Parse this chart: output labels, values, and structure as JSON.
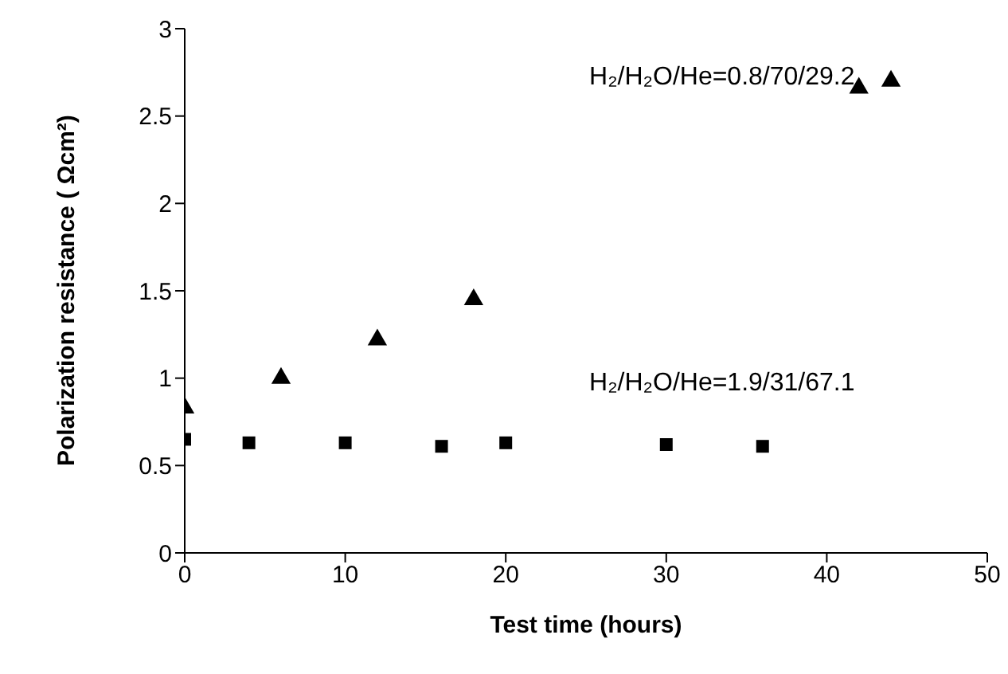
{
  "chart_data": {
    "type": "scatter",
    "xlabel": "Test time (hours)",
    "ylabel": "Polarization resistance ( Ωcm²)",
    "xlim": [
      0,
      50
    ],
    "xticks": [
      0,
      10,
      20,
      30,
      40,
      50
    ],
    "ylim": [
      0,
      3
    ],
    "yticks": [
      0,
      0.5,
      1,
      1.5,
      2,
      2.5,
      3
    ],
    "grid": false,
    "legend": false,
    "series": [
      {
        "name": "H₂/H₂O/He=0.8/70/29.2",
        "color": "#000000",
        "marker": "triangle",
        "x": [
          0,
          6,
          12,
          18,
          42,
          44
        ],
        "values": [
          0.83,
          1.0,
          1.22,
          1.45,
          2.66,
          2.7
        ]
      },
      {
        "name": "H₂/H₂O/He=1.9/31/67.1",
        "color": "#000000",
        "marker": "square",
        "x": [
          0,
          4,
          10,
          16,
          20,
          30,
          36
        ],
        "values": [
          0.65,
          0.63,
          0.63,
          0.61,
          0.63,
          0.62,
          0.61
        ]
      }
    ]
  }
}
